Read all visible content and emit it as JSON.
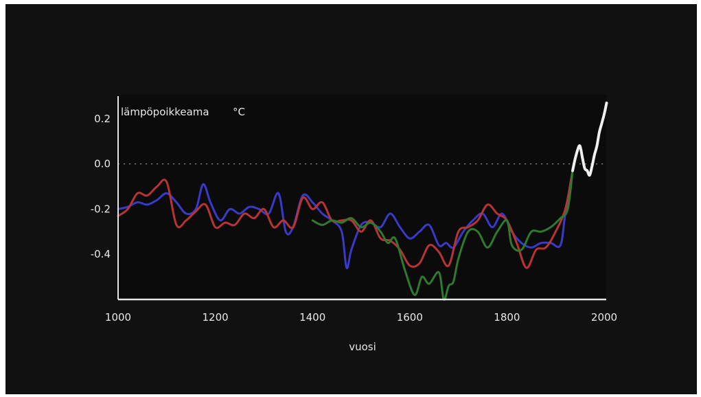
{
  "chart_data": {
    "type": "line",
    "ylabel": "lämpöpoikkeama",
    "yunit": "°C",
    "xlabel": "vuosi",
    "xlim": [
      1000,
      2000
    ],
    "ylim": [
      -0.6,
      0.3
    ],
    "xticks": [
      "1000",
      "1200",
      "1400",
      "1600",
      "1800",
      "2000"
    ],
    "yticks": [
      "0.2",
      "0.0",
      "-0.2",
      "-0.4"
    ],
    "reference_line": 0.0,
    "grid": false,
    "background": "#111111",
    "series": [
      {
        "color": "#3a3ac8",
        "x": [
          1000,
          1020,
          1040,
          1060,
          1080,
          1100,
          1120,
          1140,
          1160,
          1175,
          1190,
          1210,
          1230,
          1250,
          1270,
          1290,
          1310,
          1330,
          1345,
          1360,
          1380,
          1400,
          1420,
          1440,
          1460,
          1470,
          1480,
          1500,
          1520,
          1540,
          1560,
          1580,
          1600,
          1620,
          1640,
          1660,
          1675,
          1690,
          1710,
          1730,
          1750,
          1770,
          1790,
          1810,
          1830,
          1850,
          1870,
          1890,
          1910,
          1920,
          1935
        ],
        "y": [
          -0.2,
          -0.19,
          -0.17,
          -0.18,
          -0.16,
          -0.13,
          -0.17,
          -0.22,
          -0.2,
          -0.09,
          -0.17,
          -0.25,
          -0.2,
          -0.22,
          -0.19,
          -0.2,
          -0.22,
          -0.13,
          -0.3,
          -0.28,
          -0.14,
          -0.17,
          -0.22,
          -0.25,
          -0.3,
          -0.46,
          -0.38,
          -0.27,
          -0.26,
          -0.28,
          -0.22,
          -0.28,
          -0.33,
          -0.3,
          -0.27,
          -0.36,
          -0.35,
          -0.37,
          -0.3,
          -0.25,
          -0.22,
          -0.28,
          -0.22,
          -0.3,
          -0.35,
          -0.37,
          -0.35,
          -0.35,
          -0.36,
          -0.22,
          -0.03
        ]
      },
      {
        "color": "#b83434",
        "x": [
          1000,
          1020,
          1040,
          1060,
          1080,
          1100,
          1120,
          1140,
          1160,
          1180,
          1200,
          1220,
          1240,
          1260,
          1280,
          1300,
          1320,
          1340,
          1360,
          1380,
          1400,
          1420,
          1440,
          1460,
          1480,
          1500,
          1520,
          1540,
          1560,
          1580,
          1600,
          1620,
          1640,
          1660,
          1680,
          1700,
          1720,
          1740,
          1760,
          1780,
          1800,
          1820,
          1840,
          1860,
          1880,
          1900,
          1920,
          1935
        ],
        "y": [
          -0.23,
          -0.2,
          -0.13,
          -0.14,
          -0.1,
          -0.08,
          -0.27,
          -0.25,
          -0.21,
          -0.18,
          -0.28,
          -0.26,
          -0.27,
          -0.22,
          -0.24,
          -0.2,
          -0.28,
          -0.25,
          -0.28,
          -0.15,
          -0.2,
          -0.17,
          -0.25,
          -0.25,
          -0.25,
          -0.3,
          -0.25,
          -0.33,
          -0.34,
          -0.38,
          -0.45,
          -0.44,
          -0.36,
          -0.39,
          -0.45,
          -0.3,
          -0.28,
          -0.25,
          -0.18,
          -0.22,
          -0.25,
          -0.35,
          -0.46,
          -0.38,
          -0.37,
          -0.3,
          -0.2,
          -0.03
        ]
      },
      {
        "color": "#2f7a2f",
        "x": [
          1400,
          1420,
          1440,
          1460,
          1480,
          1500,
          1520,
          1540,
          1555,
          1570,
          1590,
          1610,
          1625,
          1640,
          1660,
          1670,
          1680,
          1690,
          1700,
          1720,
          1740,
          1760,
          1780,
          1800,
          1810,
          1830,
          1850,
          1870,
          1890,
          1910,
          1925,
          1935
        ],
        "y": [
          -0.25,
          -0.27,
          -0.25,
          -0.26,
          -0.24,
          -0.28,
          -0.26,
          -0.3,
          -0.35,
          -0.33,
          -0.47,
          -0.58,
          -0.5,
          -0.53,
          -0.48,
          -0.6,
          -0.54,
          -0.52,
          -0.42,
          -0.3,
          -0.3,
          -0.37,
          -0.3,
          -0.25,
          -0.36,
          -0.38,
          -0.3,
          -0.3,
          -0.28,
          -0.24,
          -0.2,
          -0.03
        ]
      },
      {
        "color": "#f0f0f0",
        "x": [
          1935,
          1940,
          1945,
          1950,
          1955,
          1960,
          1965,
          1970,
          1975,
          1980,
          1985,
          1990,
          1995,
          2000,
          2005
        ],
        "y": [
          -0.03,
          0.02,
          0.06,
          0.08,
          0.03,
          -0.02,
          -0.03,
          -0.05,
          -0.01,
          0.04,
          0.08,
          0.14,
          0.18,
          0.22,
          0.27
        ]
      }
    ]
  }
}
